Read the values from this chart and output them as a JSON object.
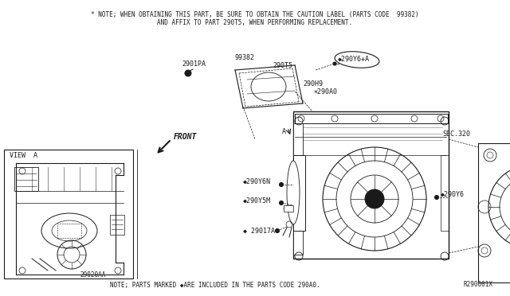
{
  "bg_color": "#ffffff",
  "line_color": "#1a1a1a",
  "title_note": "* NOTE; WHEN OBTAINING THIS PART, BE SURE TO OBTAIN THE CAUTION LABEL (PARTS CODE  99382)",
  "title_note2": "AND AFFIX TO PART 290T5, WHEN PERFORMING REPLACEMENT.",
  "bottom_note": "NOTE; PARTS MARKED ◆ARE INCLUDED IN THE PARTS CODE 290A0.",
  "ref_code": "R290001X",
  "font_size_note": 5.8
}
